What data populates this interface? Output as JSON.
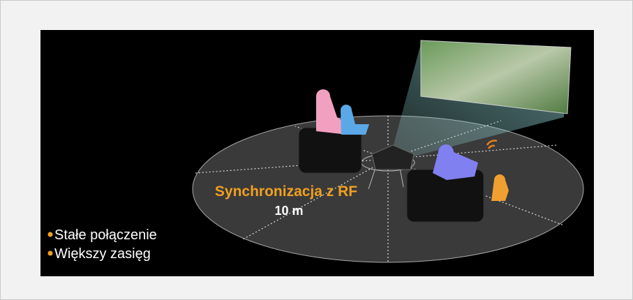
{
  "illustration": {
    "caption": "Synchronizacja z RF",
    "distance": "10 m",
    "bullets": [
      "Stałe połączenie",
      "Większy zasięg"
    ]
  }
}
